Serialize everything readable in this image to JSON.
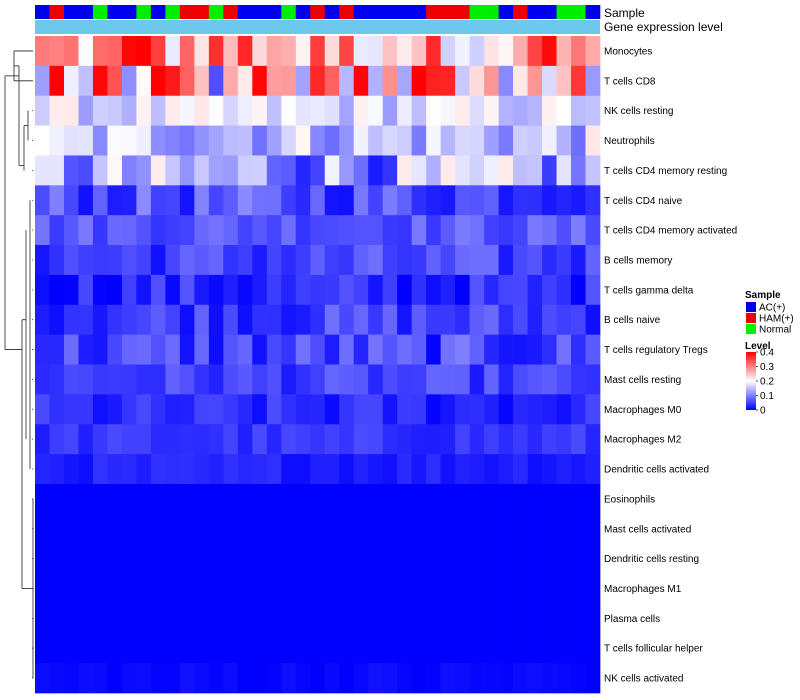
{
  "chart_data": {
    "type": "heatmap",
    "title": "",
    "annotation_labels": {
      "sample": "Sample",
      "gene_expression": "Gene expression level"
    },
    "legend_sample": {
      "title": "Sample",
      "entries": [
        {
          "label": "AC(+)",
          "color": "#0000ee"
        },
        {
          "label": "HAM(+)",
          "color": "#ee0000"
        },
        {
          "label": "Normal",
          "color": "#00ee00"
        }
      ]
    },
    "legend_level": {
      "title": "Level",
      "ticks": [
        "0.4",
        "0.3",
        "0.2",
        "0.1",
        "0"
      ],
      "tick_values": [
        0.4,
        0.3,
        0.2,
        0.1,
        0
      ],
      "range": [
        0,
        0.4
      ],
      "colors": {
        "low": "#0000ff",
        "mid": "#ffffff",
        "high": "#ff0000"
      }
    },
    "sample_groups": [
      "A",
      "H",
      "A",
      "A",
      "N",
      "A",
      "A",
      "N",
      "A",
      "N",
      "H",
      "H",
      "N",
      "H",
      "A",
      "A",
      "A",
      "N",
      "A",
      "H",
      "A",
      "H",
      "A",
      "A",
      "A",
      "A",
      "A",
      "H",
      "H",
      "H",
      "N",
      "N",
      "A",
      "H",
      "A",
      "A",
      "N",
      "N",
      "A"
    ],
    "rows": [
      {
        "label": "Monocytes",
        "base": 0.27,
        "var": 0.11
      },
      {
        "label": "T cells CD8",
        "base": 0.22,
        "var": 0.16
      },
      {
        "label": "NK cells resting",
        "base": 0.17,
        "var": 0.05
      },
      {
        "label": "Neutrophils",
        "base": 0.15,
        "var": 0.07
      },
      {
        "label": "T cells CD4 memory resting",
        "base": 0.12,
        "var": 0.1
      },
      {
        "label": "T cells CD4 naive",
        "base": 0.06,
        "var": 0.05
      },
      {
        "label": "T cells CD4 memory activated",
        "base": 0.07,
        "var": 0.03
      },
      {
        "label": "B cells memory",
        "base": 0.05,
        "var": 0.04
      },
      {
        "label": "T cells gamma delta",
        "base": 0.03,
        "var": 0.04
      },
      {
        "label": "B cells naive",
        "base": 0.05,
        "var": 0.04
      },
      {
        "label": "T cells regulatory  Tregs",
        "base": 0.05,
        "var": 0.05
      },
      {
        "label": "Mast cells resting",
        "base": 0.05,
        "var": 0.03
      },
      {
        "label": "Macrophages M0",
        "base": 0.03,
        "var": 0.03
      },
      {
        "label": "Macrophages M2",
        "base": 0.04,
        "var": 0.02
      },
      {
        "label": "Dendritic cells activated",
        "base": 0.025,
        "var": 0.015
      },
      {
        "label": "Eosinophils",
        "base": 0.0,
        "var": 0.0
      },
      {
        "label": "Mast cells activated",
        "base": 0.0,
        "var": 0.0
      },
      {
        "label": "Dendritic cells resting",
        "base": 0.0,
        "var": 0.0
      },
      {
        "label": "Macrophages M1",
        "base": 0.0,
        "var": 0.0
      },
      {
        "label": "Plasma cells",
        "base": 0.0,
        "var": 0.0
      },
      {
        "label": "T cells follicular helper",
        "base": 0.0,
        "var": 0.0
      },
      {
        "label": "NK cells activated",
        "base": 0.005,
        "var": 0.01
      }
    ]
  }
}
